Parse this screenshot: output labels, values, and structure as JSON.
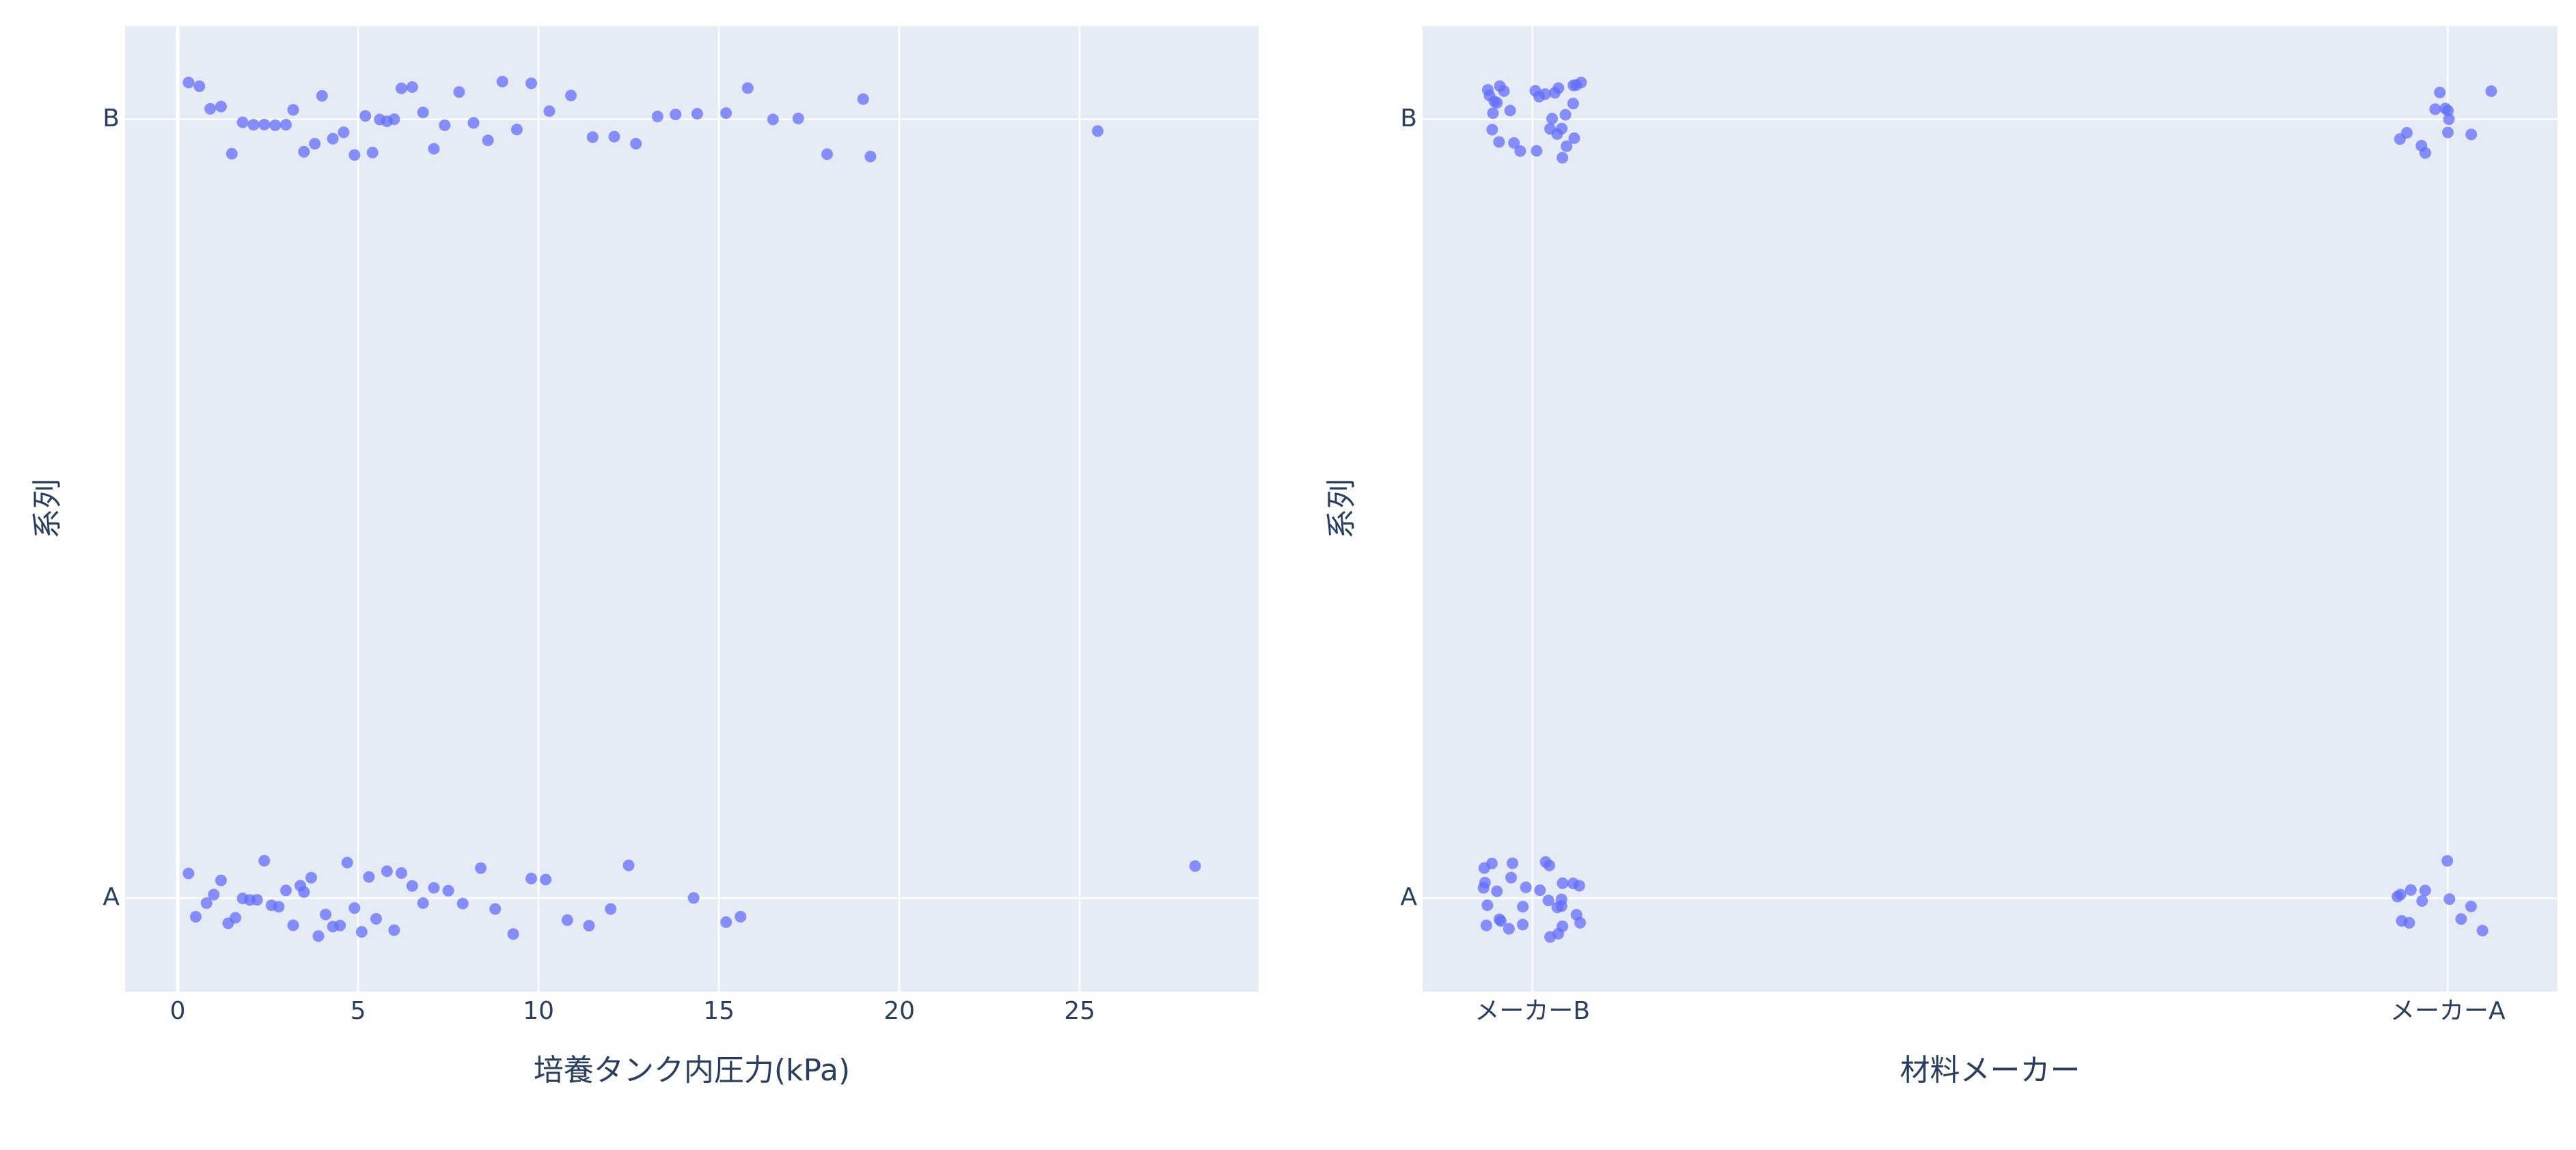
{
  "chart_data": [
    {
      "type": "strip",
      "x_label": "培養タンク内圧力(kPa)",
      "y_label": "系列",
      "color": "#636efa",
      "categories": [
        "A",
        "B"
      ],
      "values": [
        [
          0.3,
          0.5,
          0.8,
          1.0,
          1.2,
          1.4,
          1.6,
          1.8,
          2.0,
          2.2,
          2.4,
          2.6,
          2.8,
          3.0,
          3.2,
          3.4,
          3.5,
          3.7,
          3.9,
          4.1,
          4.3,
          4.5,
          4.7,
          4.9,
          5.1,
          5.3,
          5.5,
          5.8,
          6.0,
          6.2,
          6.5,
          6.8,
          7.1,
          7.5,
          7.9,
          8.4,
          8.8,
          9.3,
          9.8,
          10.2,
          10.8,
          11.4,
          12.0,
          12.5,
          14.3,
          15.2,
          15.6,
          28.2
        ],
        [
          0.3,
          0.6,
          0.9,
          1.2,
          1.5,
          1.8,
          2.1,
          2.4,
          2.7,
          3.0,
          3.2,
          3.5,
          3.8,
          4.0,
          4.3,
          4.6,
          4.9,
          5.2,
          5.4,
          5.6,
          5.8,
          6.0,
          6.2,
          6.5,
          6.8,
          7.1,
          7.4,
          7.8,
          8.2,
          8.6,
          9.0,
          9.4,
          9.8,
          10.3,
          10.9,
          11.5,
          12.1,
          12.7,
          13.3,
          13.8,
          14.4,
          15.2,
          15.8,
          16.5,
          17.2,
          18.0,
          19.0,
          19.2,
          25.5
        ]
      ],
      "xlim": [
        -1.46,
        29.96
      ],
      "xticks": [
        0,
        5,
        10,
        15,
        20,
        25
      ],
      "grid": true
    },
    {
      "type": "category-strip",
      "x_label": "材料メーカー",
      "y_label": "系列",
      "color": "#636efa",
      "categories": [
        "A",
        "B"
      ],
      "x_categories": [
        "メーカーB",
        "メーカーA"
      ],
      "x": [
        "メーカーB",
        "メーカーB",
        "メーカーB",
        "メーカーB",
        "メーカーB",
        "メーカーB",
        "メーカーB",
        "メーカーB",
        "メーカーB",
        "メーカーB",
        "メーカーB",
        "メーカーB",
        "メーカーB",
        "メーカーB",
        "メーカーB",
        "メーカーB",
        "メーカーB",
        "メーカーB",
        "メーカーB",
        "メーカーB",
        "メーカーB",
        "メーカーB",
        "メーカーB",
        "メーカーB",
        "メーカーB",
        "メーカーB",
        "メーカーB",
        "メーカーB",
        "メーカーB",
        "メーカーB",
        "メーカーA",
        "メーカーA",
        "メーカーA",
        "メーカーA",
        "メーカーA",
        "メーカーA",
        "メーカーA",
        "メーカーA",
        "メーカーA",
        "メーカーA",
        "メーカーA",
        "メーカーA",
        "メーカーB",
        "メーカーB",
        "メーカーB",
        "メーカーB",
        "メーカーB",
        "メーカーB",
        "メーカーB",
        "メーカーB",
        "メーカーB",
        "メーカーB",
        "メーカーB",
        "メーカーB",
        "メーカーB",
        "メーカーB",
        "メーカーB",
        "メーカーB",
        "メーカーB",
        "メーカーB",
        "メーカーB",
        "メーカーB",
        "メーカーB",
        "メーカーB",
        "メーカーB",
        "メーカーB",
        "メーカーB",
        "メーカーB",
        "メーカーB",
        "メーカーB",
        "メーカーB",
        "メーカーB",
        "メーカーA",
        "メーカーA",
        "メーカーA",
        "メーカーA",
        "メーカーA",
        "メーカーA",
        "メーカーA",
        "メーカーA",
        "メーカーA",
        "メーカーA",
        "メーカーA",
        "メーカーA"
      ],
      "y": [
        "B",
        "B",
        "B",
        "B",
        "B",
        "B",
        "B",
        "B",
        "B",
        "B",
        "B",
        "B",
        "B",
        "B",
        "B",
        "B",
        "B",
        "B",
        "B",
        "B",
        "B",
        "B",
        "B",
        "B",
        "B",
        "B",
        "B",
        "B",
        "B",
        "B",
        "B",
        "B",
        "B",
        "B",
        "B",
        "B",
        "B",
        "B",
        "B",
        "B",
        "B",
        "B",
        "A",
        "A",
        "A",
        "A",
        "A",
        "A",
        "A",
        "A",
        "A",
        "A",
        "A",
        "A",
        "A",
        "A",
        "A",
        "A",
        "A",
        "A",
        "A",
        "A",
        "A",
        "A",
        "A",
        "A",
        "A",
        "A",
        "A",
        "A",
        "A",
        "A",
        "A",
        "A",
        "A",
        "A",
        "A",
        "A",
        "A",
        "A",
        "A",
        "A",
        "A",
        "A"
      ],
      "grid": true
    }
  ]
}
